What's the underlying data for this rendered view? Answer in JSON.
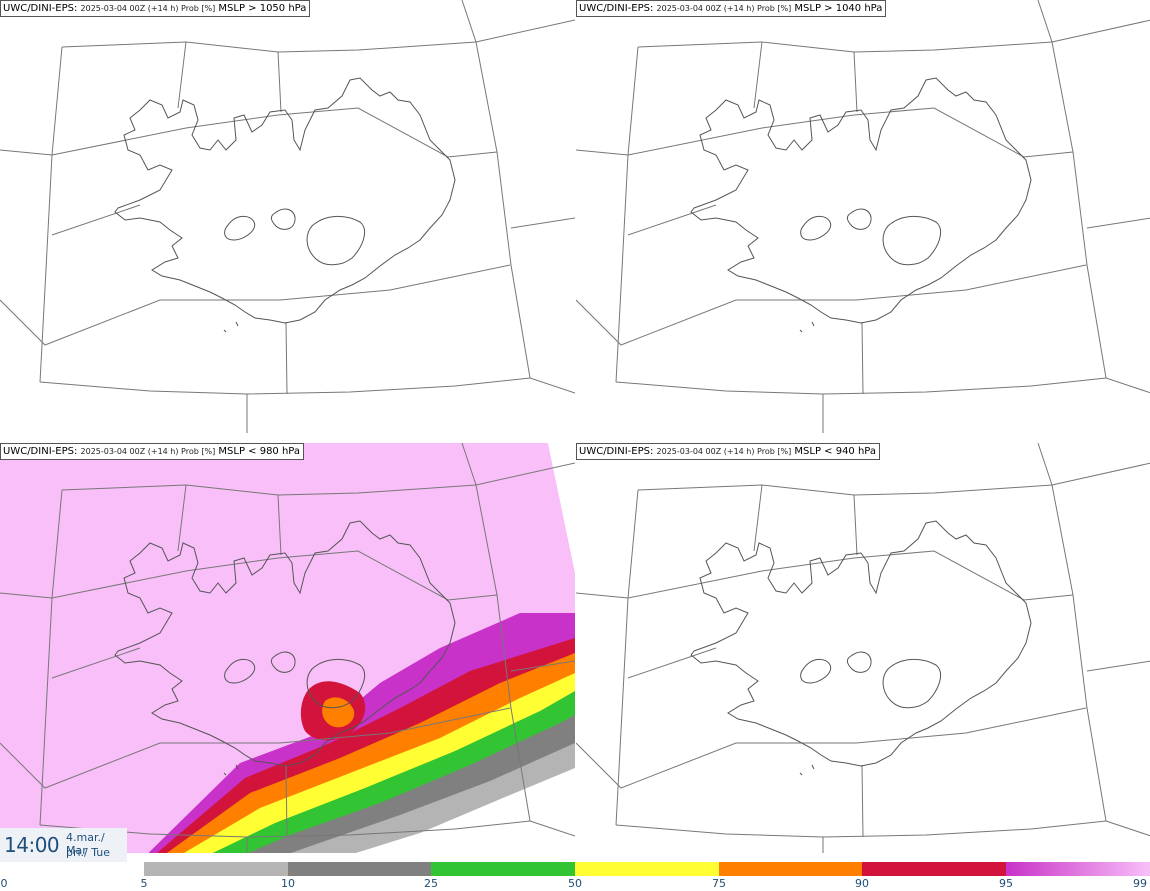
{
  "panels": [
    {
      "model": "UWC/DINI-EPS",
      "meta": "2025-03-04 00Z (+14 h) Prob [%]",
      "field": "MSLP > 1050 hPa"
    },
    {
      "model": "UWC/DINI-EPS",
      "meta": "2025-03-04 00Z (+14 h) Prob [%]",
      "field": "MSLP > 1040 hPa"
    },
    {
      "model": "UWC/DINI-EPS",
      "meta": "2025-03-04 00Z (+14 h) Prob [%]",
      "field": "MSLP < 980 hPa"
    },
    {
      "model": "UWC/DINI-EPS",
      "meta": "2025-03-04 00Z (+14 h) Prob [%]",
      "field": "MSLP < 940 hPa"
    }
  ],
  "time": {
    "clock": "14:00",
    "date_line1": "4.mar./ Mar",
    "date_line2": "þri./ Tue"
  },
  "colorbar": {
    "ticks": [
      "0",
      "5",
      "10",
      "25",
      "50",
      "75",
      "90",
      "95",
      "99"
    ],
    "colors": [
      "#b4b4b4",
      "#808080",
      "#33c433",
      "#ffff33",
      "#ff7f00",
      "#d2143c",
      "#c832c8",
      "#f8bff8"
    ]
  }
}
